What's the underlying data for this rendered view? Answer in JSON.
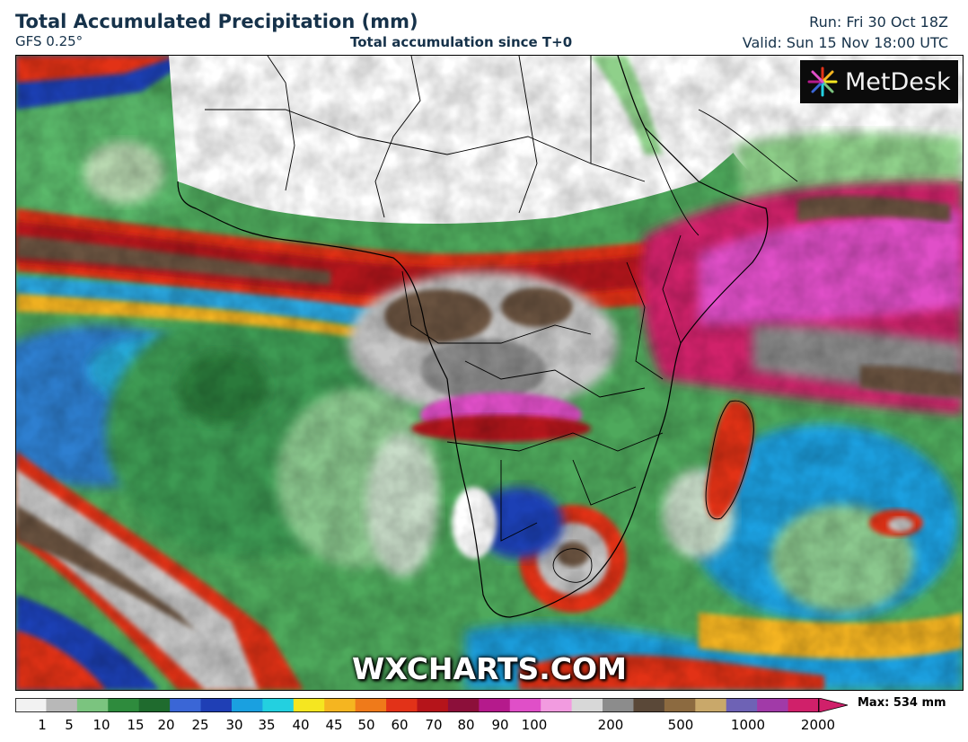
{
  "header": {
    "title": "Total Accumulated Precipitation (mm)",
    "model": "GFS 0.25°",
    "subtitle": "Total accumulation since T+0",
    "run": "Run: Fri 30 Oct 18Z",
    "valid": "Valid: Sun 15 Nov 18:00 UTC"
  },
  "logo": {
    "text": "MetDesk"
  },
  "watermark": "WXCHARTS.COM",
  "legend": {
    "max_label": "Max: 534 mm",
    "ticks": [
      "1",
      "5",
      "10",
      "15",
      "20",
      "25",
      "30",
      "35",
      "40",
      "45",
      "50",
      "60",
      "70",
      "80",
      "90",
      "100",
      "200",
      "500",
      "1000",
      "2000"
    ],
    "colors": [
      "#f2f2f2",
      "#b8b8b8",
      "#7bc47f",
      "#2e8b3d",
      "#1f6b2e",
      "#3a66d6",
      "#1f3fb5",
      "#1aa0e0",
      "#23d0e0",
      "#f5e620",
      "#f5b520",
      "#ef7a1a",
      "#e23218",
      "#b5141a",
      "#8c0f3a",
      "#b51a8c",
      "#e04fc8",
      "#f29be0",
      "#d8d8d8",
      "#8c8c8c",
      "#5a4838",
      "#8c6a40",
      "#c9a86a",
      "#6e62b5",
      "#a13aa8",
      "#d0206a"
    ]
  }
}
